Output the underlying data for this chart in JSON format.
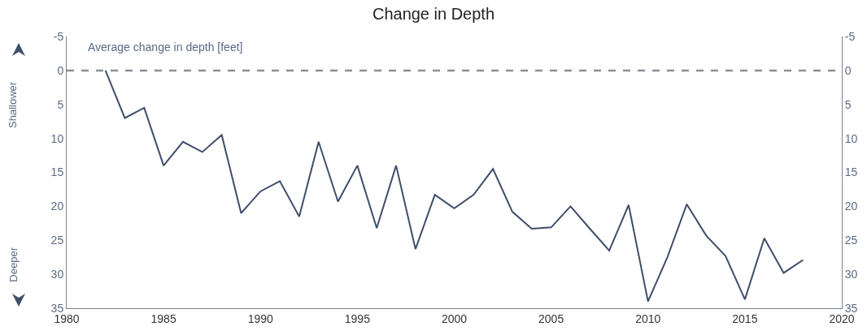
{
  "chart_data": {
    "type": "line",
    "title": "Change in Depth",
    "annotations": [
      "Average change in depth [feet]",
      "Shallower",
      "Deeper"
    ],
    "x": [
      1982,
      1983,
      1984,
      1985,
      1986,
      1987,
      1988,
      1989,
      1990,
      1991,
      1992,
      1993,
      1994,
      1995,
      1996,
      1997,
      1998,
      1999,
      2000,
      2001,
      2002,
      2003,
      2004,
      2005,
      2006,
      2007,
      2008,
      2009,
      2010,
      2011,
      2012,
      2013,
      2014,
      2015,
      2016,
      2017,
      2018
    ],
    "series": [
      {
        "color": "#3f4e6b",
        "values": [
          0,
          7,
          5.5,
          14,
          10.5,
          12,
          9.5,
          21,
          17.8,
          16.3,
          21.5,
          10.5,
          19.3,
          14,
          23.2,
          14,
          26.3,
          18.3,
          20.3,
          18.3,
          14.5,
          20.8,
          23.3,
          23.1,
          20,
          23.3,
          26.5,
          19.8,
          34,
          27.5,
          19.7,
          24.3,
          27.3,
          33.7,
          24.7,
          29.8,
          27.9
        ]
      }
    ],
    "xlim": [
      1980,
      2020
    ],
    "xticks": [
      1980,
      1985,
      1990,
      1995,
      2000,
      2005,
      2010,
      2015,
      2020
    ],
    "ylim": [
      35,
      -5
    ],
    "yticks": [
      -5,
      0,
      5,
      10,
      15,
      20,
      25,
      30,
      35
    ],
    "y2lim": [
      35,
      -5
    ],
    "y2ticks": [
      -5,
      0,
      5,
      10,
      15,
      20,
      25,
      30,
      35
    ],
    "ref_lines": [
      {
        "axis": "y",
        "value": 0,
        "color": "#8a8f96",
        "line_style": "dashed"
      }
    ],
    "grid": false,
    "marker": "none",
    "line_style": "solid"
  }
}
